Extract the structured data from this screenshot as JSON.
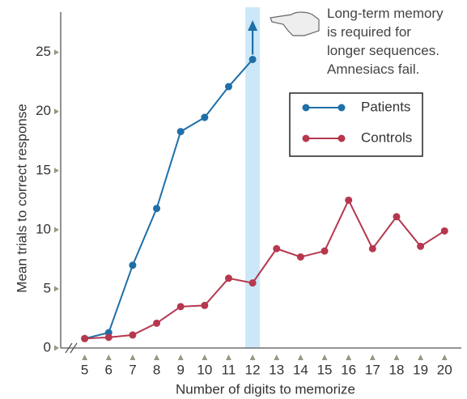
{
  "chart_data": {
    "type": "line",
    "x_label": "Number of digits to memorize",
    "y_label": "Mean trials to correct response",
    "x": [
      5,
      6,
      7,
      8,
      9,
      10,
      11,
      12,
      13,
      14,
      15,
      16,
      17,
      18,
      19,
      20
    ],
    "series": [
      {
        "name": "Patients",
        "color": "#1f6fa8",
        "values": [
          0.8,
          1.3,
          7.0,
          11.8,
          18.3,
          19.5,
          22.1,
          24.4,
          null,
          null,
          null,
          null,
          null,
          null,
          null,
          null
        ]
      },
      {
        "name": "Controls",
        "color": "#b5384e",
        "values": [
          0.8,
          0.9,
          1.1,
          2.1,
          3.5,
          3.6,
          5.9,
          5.5,
          8.4,
          7.7,
          8.2,
          12.5,
          8.4,
          11.1,
          8.6,
          9.9
        ]
      }
    ],
    "xlim": [
      4,
      20.7
    ],
    "ylim": [
      0,
      28.4
    ],
    "xticks": [
      5,
      6,
      7,
      8,
      9,
      10,
      11,
      12,
      13,
      14,
      15,
      16,
      17,
      18,
      19,
      20
    ],
    "yticks": [
      0,
      5,
      10,
      15,
      20,
      25
    ],
    "highlight_x": 12,
    "highlight_color": "#cce8f8",
    "annotation_lines": [
      "Long-term memory",
      "is required for",
      "longer sequences.",
      "Amnesiacs fail."
    ],
    "legend": "upper right"
  }
}
